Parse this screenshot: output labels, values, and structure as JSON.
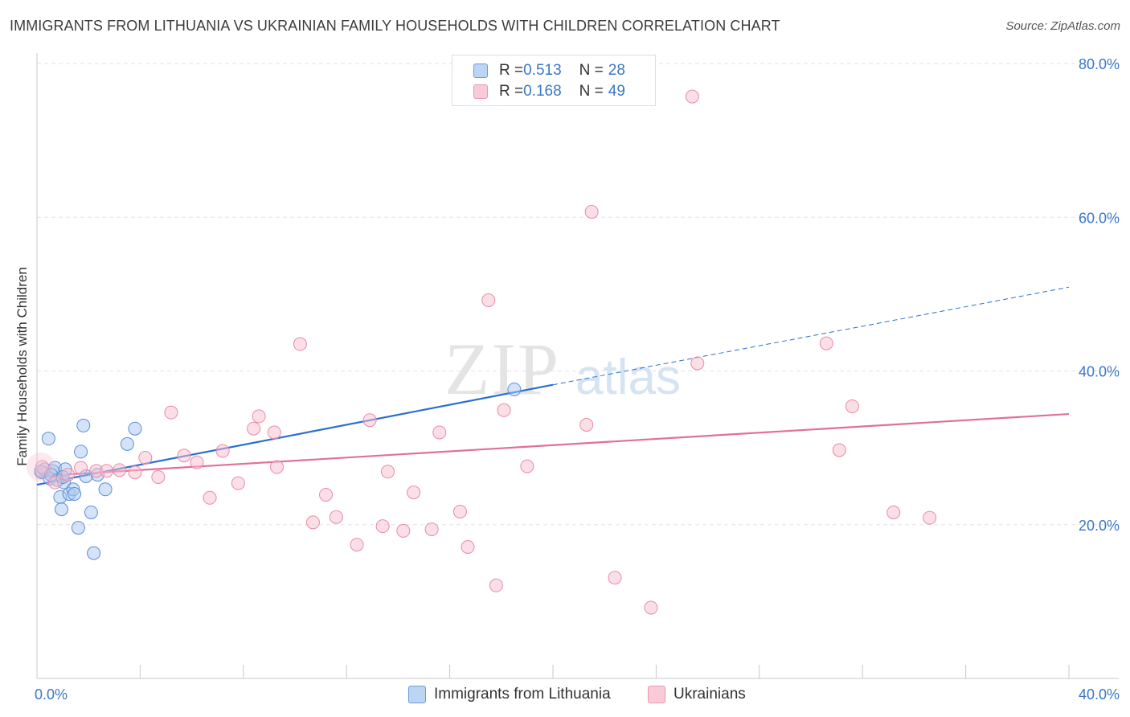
{
  "title": "IMMIGRANTS FROM LITHUANIA VS UKRAINIAN FAMILY HOUSEHOLDS WITH CHILDREN CORRELATION CHART",
  "source": "Source: ZipAtlas.com",
  "watermark": {
    "zip": "ZIP",
    "atlas": "atlas"
  },
  "colors": {
    "blue_fill": "#a9c8ef",
    "blue_stroke": "#5a8fd6",
    "blue_line": "#2b6fcf",
    "pink_fill": "#f7bfd0",
    "pink_stroke": "#e98aa8",
    "pink_line": "#e07099",
    "tick_text": "#3a78c8",
    "grid": "#e3e3e3"
  },
  "legend": {
    "rows": [
      {
        "r_label": "R = ",
        "r_value": "0.513",
        "n_label": "N = ",
        "n_value": "28",
        "color": "blue"
      },
      {
        "r_label": "R = ",
        "r_value": "0.168",
        "n_label": "N = ",
        "n_value": "49",
        "color": "pink"
      }
    ]
  },
  "bottom_legend": [
    {
      "label": "Immigrants from Lithuania",
      "color": "blue"
    },
    {
      "label": "Ukrainians",
      "color": "pink"
    }
  ],
  "chart_data": {
    "type": "scatter",
    "xlabel": "",
    "ylabel": "Family Households with Children",
    "xlim": [
      0,
      40
    ],
    "ylim": [
      0,
      80
    ],
    "x_tick_labels": [
      {
        "value": 0,
        "label": "0.0%"
      },
      {
        "value": 40,
        "label": "40.0%"
      }
    ],
    "y_tick_labels": [
      {
        "value": 20,
        "label": "20.0%"
      },
      {
        "value": 40,
        "label": "40.0%"
      },
      {
        "value": 60,
        "label": "60.0%"
      },
      {
        "value": 80,
        "label": "80.0%"
      }
    ],
    "grid": true,
    "series": [
      {
        "name": "Immigrants from Lithuania",
        "color": "blue",
        "points": [
          [
            0.2,
            26.8
          ],
          [
            0.3,
            27.2
          ],
          [
            0.45,
            31.2
          ],
          [
            0.5,
            26.0
          ],
          [
            0.6,
            27.0
          ],
          [
            0.7,
            27.4
          ],
          [
            0.8,
            25.8
          ],
          [
            0.9,
            23.6
          ],
          [
            0.95,
            22.0
          ],
          [
            1.05,
            25.5
          ],
          [
            1.1,
            27.2
          ],
          [
            1.25,
            24.0
          ],
          [
            1.4,
            24.6
          ],
          [
            1.45,
            24.0
          ],
          [
            1.6,
            19.6
          ],
          [
            1.7,
            29.5
          ],
          [
            1.8,
            32.9
          ],
          [
            1.9,
            26.3
          ],
          [
            2.1,
            21.6
          ],
          [
            2.2,
            16.3
          ],
          [
            2.35,
            26.5
          ],
          [
            2.65,
            24.6
          ],
          [
            3.5,
            30.5
          ],
          [
            3.8,
            32.5
          ],
          [
            18.5,
            37.6
          ],
          [
            0.15,
            26.9
          ],
          [
            0.55,
            26.5
          ],
          [
            1.0,
            26.2
          ]
        ],
        "trend": {
          "x": [
            0,
            20
          ],
          "y": [
            25.2,
            38.2
          ],
          "dashed_to": [
            40,
            50.9
          ]
        }
      },
      {
        "name": "Ukrainians",
        "color": "pink",
        "points": [
          [
            0.2,
            27.5
          ],
          [
            0.7,
            25.5
          ],
          [
            1.2,
            26.5
          ],
          [
            1.7,
            27.4
          ],
          [
            2.3,
            27.0
          ],
          [
            2.7,
            27.0
          ],
          [
            3.2,
            27.1
          ],
          [
            3.8,
            26.8
          ],
          [
            4.2,
            28.7
          ],
          [
            4.7,
            26.2
          ],
          [
            5.2,
            34.6
          ],
          [
            5.7,
            29.0
          ],
          [
            6.2,
            28.1
          ],
          [
            6.7,
            23.5
          ],
          [
            7.2,
            29.6
          ],
          [
            7.8,
            25.4
          ],
          [
            8.4,
            32.5
          ],
          [
            8.6,
            34.1
          ],
          [
            9.2,
            32.0
          ],
          [
            9.3,
            27.5
          ],
          [
            10.2,
            43.5
          ],
          [
            10.7,
            20.3
          ],
          [
            11.2,
            23.9
          ],
          [
            11.6,
            21.0
          ],
          [
            12.4,
            17.4
          ],
          [
            12.9,
            33.6
          ],
          [
            13.4,
            19.8
          ],
          [
            13.6,
            26.9
          ],
          [
            14.2,
            19.2
          ],
          [
            14.6,
            24.2
          ],
          [
            15.3,
            19.4
          ],
          [
            15.6,
            32.0
          ],
          [
            16.4,
            21.7
          ],
          [
            16.7,
            17.1
          ],
          [
            17.5,
            49.2
          ],
          [
            17.8,
            12.1
          ],
          [
            18.1,
            34.9
          ],
          [
            19.0,
            27.6
          ],
          [
            21.3,
            33.0
          ],
          [
            21.5,
            60.7
          ],
          [
            22.4,
            13.1
          ],
          [
            23.8,
            9.2
          ],
          [
            25.4,
            75.7
          ],
          [
            25.6,
            41.0
          ],
          [
            30.6,
            43.6
          ],
          [
            31.6,
            35.4
          ],
          [
            31.1,
            29.7
          ],
          [
            33.2,
            21.6
          ],
          [
            34.6,
            20.9
          ]
        ],
        "trend": {
          "x": [
            0,
            40
          ],
          "y": [
            26.3,
            34.4
          ]
        }
      }
    ]
  }
}
